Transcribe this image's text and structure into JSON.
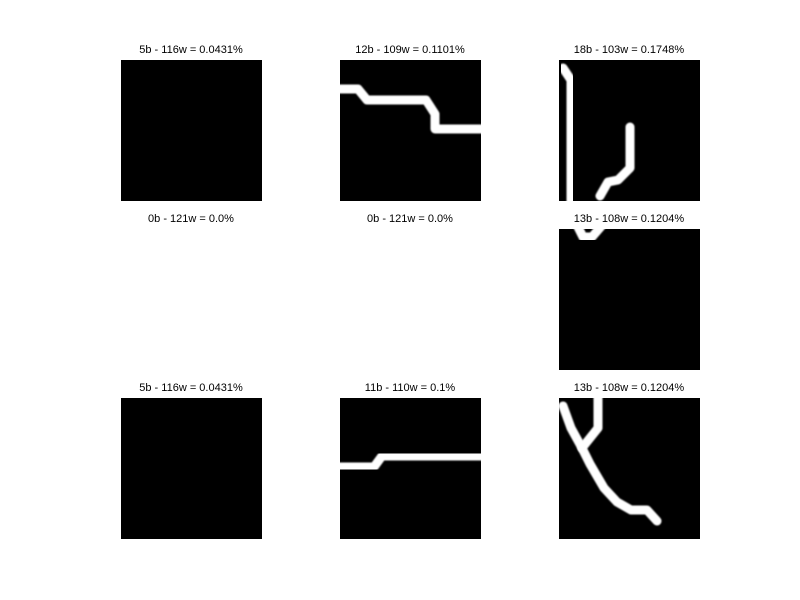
{
  "colors": {
    "background": "#ffffff",
    "tile": "#000000",
    "stroke": "#ffffff",
    "title_text": "#000000"
  },
  "tiles": [
    {
      "title": "5b - 116w = 0.0431%",
      "has_image": true
    },
    {
      "title": "12b - 109w = 0.1101%",
      "has_image": true
    },
    {
      "title": "18b - 103w = 0.1748%",
      "has_image": true
    },
    {
      "title": "0b - 121w = 0.0%",
      "has_image": false
    },
    {
      "title": "0b - 121w = 0.0%",
      "has_image": false
    },
    {
      "title": "13b - 108w = 0.1204%",
      "has_image": true
    },
    {
      "title": "5b - 116w = 0.0431%",
      "has_image": true
    },
    {
      "title": "11b - 110w = 0.1%",
      "has_image": true
    },
    {
      "title": "13b - 108w = 0.1204%",
      "has_image": true
    }
  ]
}
